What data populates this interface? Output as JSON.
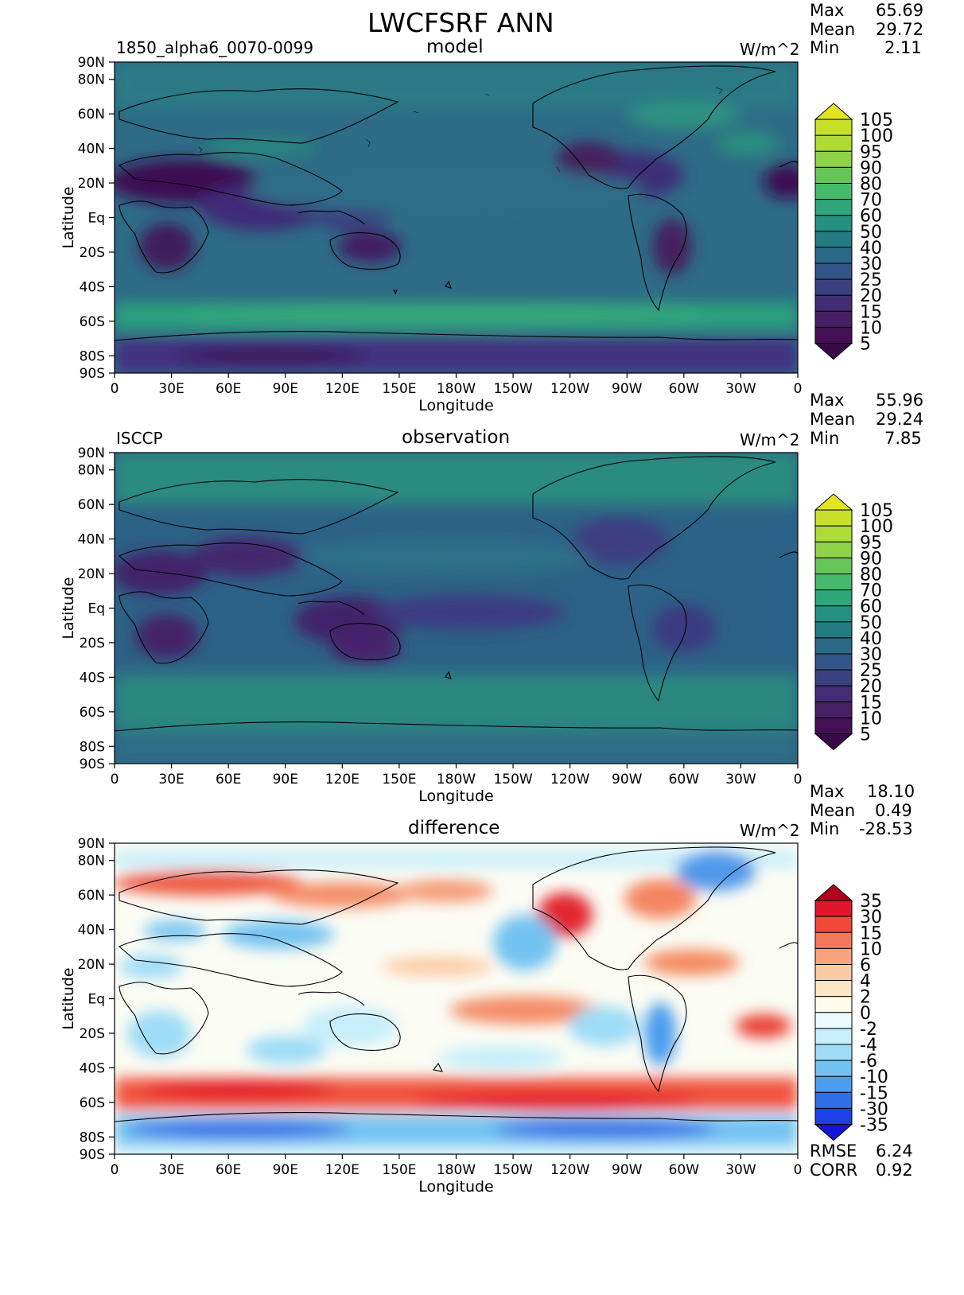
{
  "title": "LWCFSRF ANN",
  "panels": [
    {
      "id": "model",
      "title": "model",
      "left_text": "1850_alpha6_0070-0099",
      "units": "W/m^2",
      "stats": [
        [
          "Max",
          "65.69"
        ],
        [
          "Mean",
          "29.72"
        ],
        [
          "Min",
          "2.11"
        ]
      ],
      "colorbar": "seq"
    },
    {
      "id": "observation",
      "title": "observation",
      "left_text": "ISCCP",
      "units": "W/m^2",
      "stats": [
        [
          "Max",
          "55.96"
        ],
        [
          "Mean",
          "29.24"
        ],
        [
          "Min",
          "7.85"
        ]
      ],
      "colorbar": "seq"
    },
    {
      "id": "difference",
      "title": "difference",
      "left_text": "",
      "units": "W/m^2",
      "stats": [
        [
          "Max",
          "18.10"
        ],
        [
          "Mean",
          "0.49"
        ],
        [
          "Min",
          "-28.53"
        ]
      ],
      "colorbar": "div",
      "bottom_stats": [
        [
          "RMSE",
          "6.24"
        ],
        [
          "CORR",
          "0.92"
        ]
      ]
    }
  ],
  "axes": {
    "xlabel": "Longitude",
    "ylabel": "Latitude",
    "lon_ticks": [
      "0",
      "30E",
      "60E",
      "90E",
      "120E",
      "150E",
      "180W",
      "150W",
      "120W",
      "90W",
      "60W",
      "30W",
      "0"
    ],
    "lat_ticks": [
      "90N",
      "80N",
      "60N",
      "40N",
      "20N",
      "Eq",
      "20S",
      "40S",
      "60S",
      "80S",
      "90S"
    ],
    "lat_values": [
      90,
      80,
      60,
      40,
      20,
      0,
      -20,
      -40,
      -60,
      -80,
      -90
    ]
  },
  "colorbars": {
    "seq": {
      "labels": [
        "105",
        "100",
        "95",
        "90",
        "80",
        "70",
        "60",
        "50",
        "40",
        "30",
        "25",
        "20",
        "15",
        "10",
        "5"
      ],
      "colors": [
        "#e3e51f",
        "#c8e02a",
        "#aedb35",
        "#8ed247",
        "#66c65a",
        "#47b96c",
        "#2fa67a",
        "#259080",
        "#257b83",
        "#2b6886",
        "#335486",
        "#3b4180",
        "#432e75",
        "#482066",
        "#440f54",
        "#3a0a48"
      ]
    },
    "div": {
      "labels": [
        "35",
        "30",
        "15",
        "10",
        "6",
        "4",
        "2",
        "0",
        "-2",
        "-4",
        "-6",
        "-10",
        "-15",
        "-30",
        "-35"
      ],
      "colors": [
        "#b0001e",
        "#e0162a",
        "#f0493a",
        "#f4785a",
        "#f7a47e",
        "#fbcaa2",
        "#fde6c4",
        "#fffbea",
        "#eafaff",
        "#c6eefb",
        "#9edcf7",
        "#73c3f2",
        "#4c9ded",
        "#2f6fe8",
        "#1d3fe8",
        "#1515d8"
      ]
    }
  }
}
